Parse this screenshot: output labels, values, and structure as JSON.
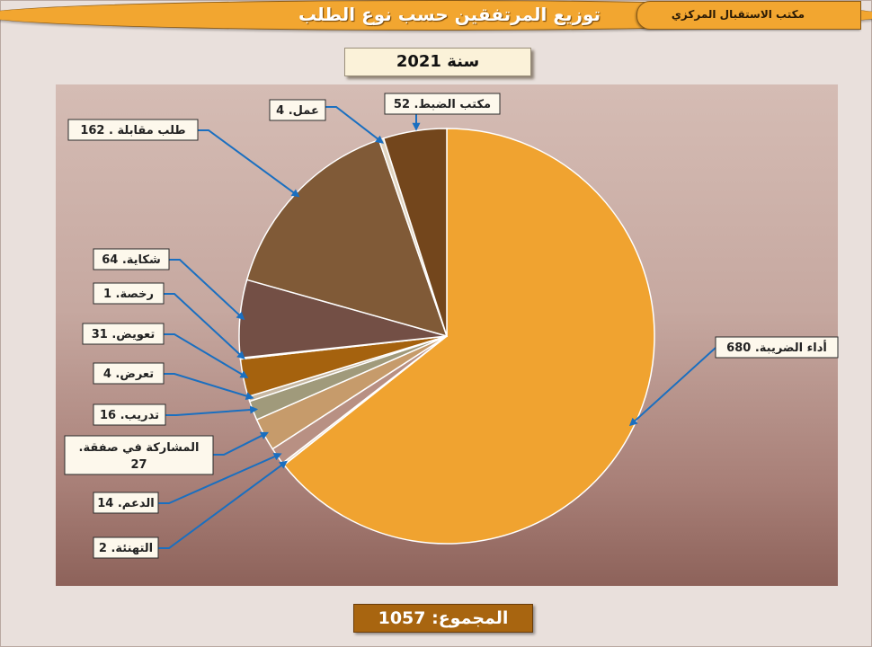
{
  "header": {
    "title": "توزيع المرتفقين حسب نوع الطلب",
    "office": "مكتب الاستقبال المركزي"
  },
  "year_label": "سنة 2021",
  "total_label": "المجموع: 1057",
  "chart_data": {
    "type": "pie",
    "title": "توزيع المرتفقين حسب نوع الطلب",
    "subtitle": "سنة 2021",
    "total": 1057,
    "slices": [
      {
        "category": "أداء الضريبة",
        "value": 680,
        "label": "أداء الضريبة. 680",
        "color": "#f0a330"
      },
      {
        "category": "التهنئة",
        "value": 2,
        "label": "التهنئة. 2",
        "color": "#e8d9c8"
      },
      {
        "category": "الدعم",
        "value": 14,
        "label": "الدعم. 14",
        "color": "#b89083"
      },
      {
        "category": "المشاركة في صفقة",
        "value": 27,
        "label": "المشاركة في صفقة. 27",
        "color": "#c69b6b"
      },
      {
        "category": "تدريب",
        "value": 16,
        "label": "تدريب. 16",
        "color": "#a09a7b"
      },
      {
        "category": "تعرض",
        "value": 4,
        "label": "تعرض. 4",
        "color": "#c6b7a1"
      },
      {
        "category": "تعويض",
        "value": 31,
        "label": "تعويض. 31",
        "color": "#a5620e"
      },
      {
        "category": "رخصة",
        "value": 1,
        "label": "رخصة. 1",
        "color": "#d4c7b3"
      },
      {
        "category": "شكاية",
        "value": 64,
        "label": "شكاية. 64",
        "color": "#734f45"
      },
      {
        "category": "طلب مقابلة",
        "value": 162,
        "label": "طلب مقابلة . 162",
        "color": "#805a37"
      },
      {
        "category": "عمل",
        "value": 4,
        "label": "عمل. 4",
        "color": "#e0d4c0"
      },
      {
        "category": "مكتب الضبط",
        "value": 52,
        "label": "مكتب الضبط. 52",
        "color": "#73461c"
      }
    ]
  }
}
